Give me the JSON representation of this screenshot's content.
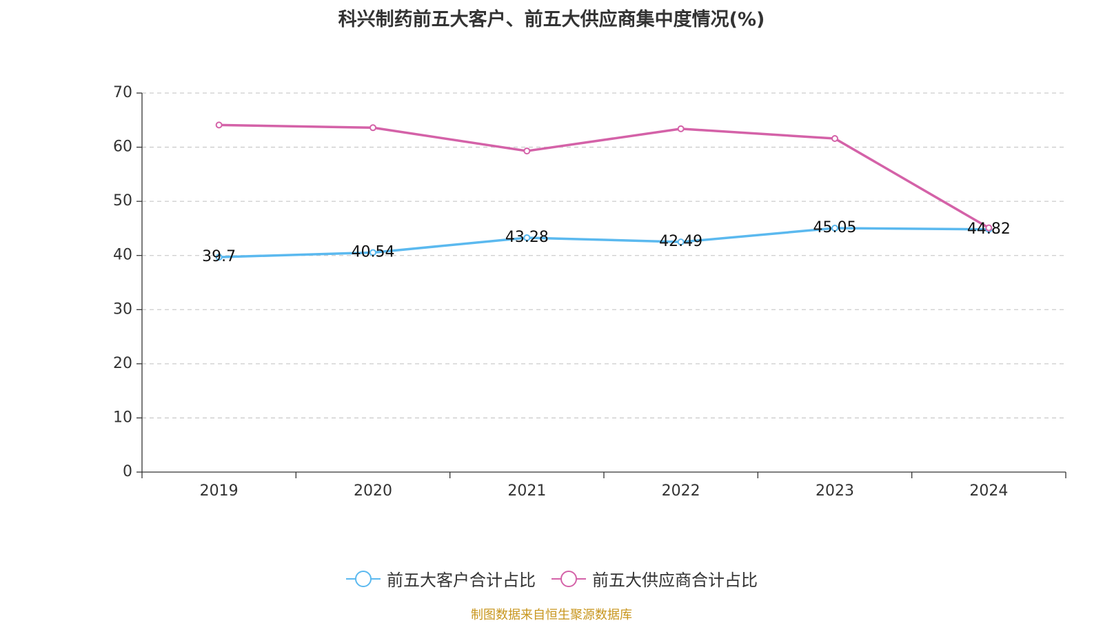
{
  "chart_data": {
    "type": "line",
    "title": "科兴制药前五大客户、前五大供应商集中度情况(%)",
    "categories": [
      "2019",
      "2020",
      "2021",
      "2022",
      "2023",
      "2024"
    ],
    "ylim": [
      0,
      70
    ],
    "yticks": [
      0,
      10,
      20,
      30,
      40,
      50,
      60,
      70
    ],
    "grid": true,
    "legend_position": "bottom",
    "series": [
      {
        "name": "前五大客户合计占比",
        "color": "#5bb9ef",
        "values": [
          39.7,
          40.54,
          43.28,
          42.49,
          45.05,
          44.82
        ],
        "labels": [
          "39.7",
          "40.54",
          "43.28",
          "42.49",
          "45.05",
          "44.82"
        ],
        "show_labels": true
      },
      {
        "name": "前五大供应商合计占比",
        "color": "#d462a8",
        "values": [
          64.1,
          63.6,
          59.3,
          63.4,
          61.6,
          45.1
        ],
        "show_labels": false
      }
    ]
  },
  "source_text": "制图数据来自恒生聚源数据库"
}
